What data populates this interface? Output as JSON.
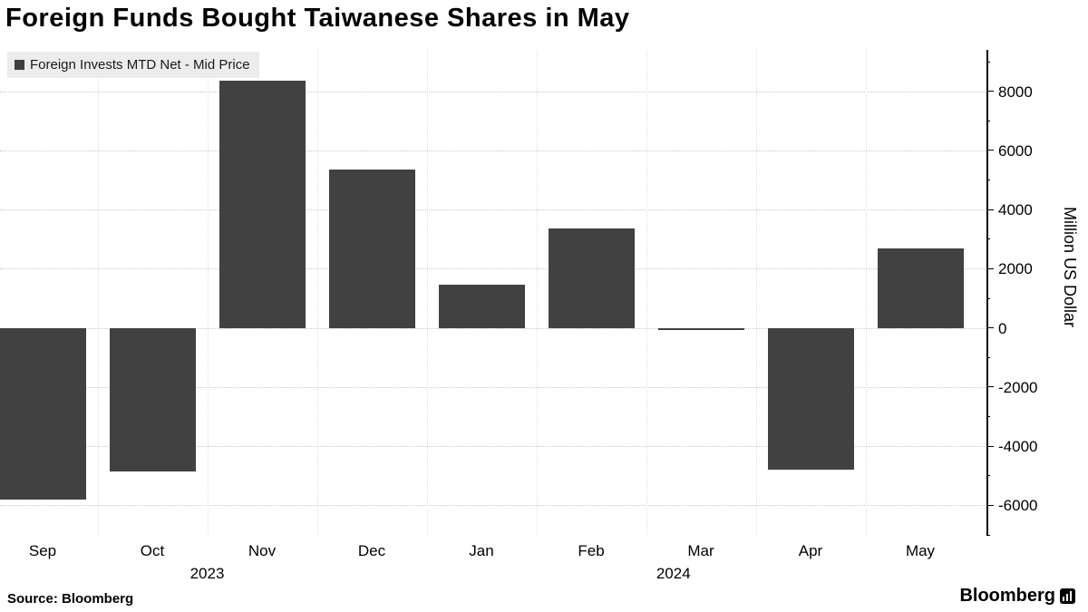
{
  "title": "Foreign Funds Bought Taiwanese Shares in May",
  "legend": {
    "label": "Foreign Invests MTD Net - Mid Price"
  },
  "source": "Source:  Bloomberg",
  "branding": "Bloomberg",
  "colors": {
    "bar": "#414141",
    "grid_h": "#c8c8c8",
    "grid_v": "#e0e0e0",
    "axis": "#000000",
    "legend_bg": "#ececec",
    "background": "#ffffff"
  },
  "chart_data": {
    "type": "bar",
    "title": "Foreign Funds Bought Taiwanese Shares in May",
    "categories": [
      "Sep",
      "Oct",
      "Nov",
      "Dec",
      "Jan",
      "Feb",
      "Mar",
      "Apr",
      "May"
    ],
    "values": [
      -5800,
      -4850,
      8350,
      5350,
      1450,
      3350,
      -80,
      -4800,
      2700
    ],
    "series_name": "Foreign Invests MTD Net - Mid Price",
    "year_labels": [
      {
        "text": "2023",
        "x_index": 1.5
      },
      {
        "text": "2024",
        "x_index": 5.75
      }
    ],
    "xlabel": "",
    "ylabel": "Million US Dollar",
    "ylim": [
      -7000,
      9400
    ],
    "yticks": [
      -6000,
      -4000,
      -2000,
      0,
      2000,
      4000,
      6000,
      8000
    ],
    "minor_tick_step": 1000,
    "grid": true,
    "legend_position": "top-left",
    "y_axis_side": "right"
  }
}
